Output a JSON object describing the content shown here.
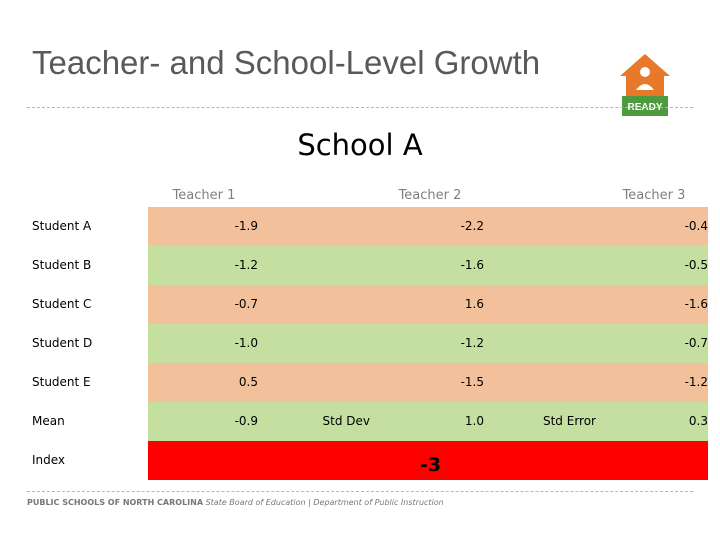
{
  "header": {
    "title": "Teacher- and School-Level Growth",
    "logo": "READY"
  },
  "subtitle": "School A",
  "table": {
    "columns": [
      "Teacher 1",
      "Teacher 2",
      "Teacher 3"
    ],
    "rows": [
      {
        "label": "Student A",
        "values": [
          "-1.9",
          "-2.2",
          "-0.4"
        ]
      },
      {
        "label": "Student B",
        "values": [
          "-1.2",
          "-1.6",
          "-0.5"
        ]
      },
      {
        "label": "Student C",
        "values": [
          "-0.7",
          "1.6",
          "-1.6"
        ]
      },
      {
        "label": "Student D",
        "values": [
          "-1.0",
          "-1.2",
          "-0.7"
        ]
      },
      {
        "label": "Student E",
        "values": [
          "0.5",
          "-1.5",
          "-1.2"
        ]
      }
    ],
    "mean": {
      "label": "Mean",
      "value": "-0.9",
      "stats": [
        {
          "label": "Std Dev",
          "value": "1.0"
        },
        {
          "label": "Std Error",
          "value": "0.3"
        }
      ]
    },
    "index": {
      "label": "Index",
      "value": "-3"
    }
  },
  "footer": {
    "org": "PUBLIC SCHOOLS OF NORTH CAROLINA",
    "dept": "State Board of Education | Department of Public Instruction"
  }
}
